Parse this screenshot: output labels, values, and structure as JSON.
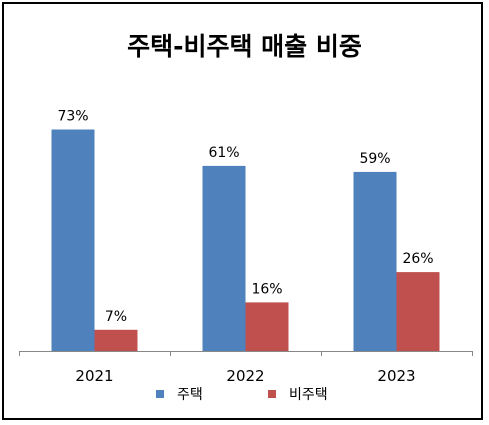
{
  "chart_data": {
    "type": "bar",
    "title": "주택-비주택 매출 비중",
    "categories": [
      "2021",
      "2022",
      "2023"
    ],
    "series": [
      {
        "name": "주택",
        "values": [
          73,
          61,
          59
        ],
        "labels": [
          "73%",
          "61%",
          "59%"
        ],
        "color": "#4F81BD"
      },
      {
        "name": "비주택",
        "values": [
          7,
          16,
          26
        ],
        "labels": [
          "7%",
          "16%",
          "26%"
        ],
        "color": "#C0504D"
      }
    ],
    "xlabel": "",
    "ylabel": "",
    "ylim": [
      0,
      86
    ],
    "grid": false,
    "legend_position": "bottom"
  }
}
